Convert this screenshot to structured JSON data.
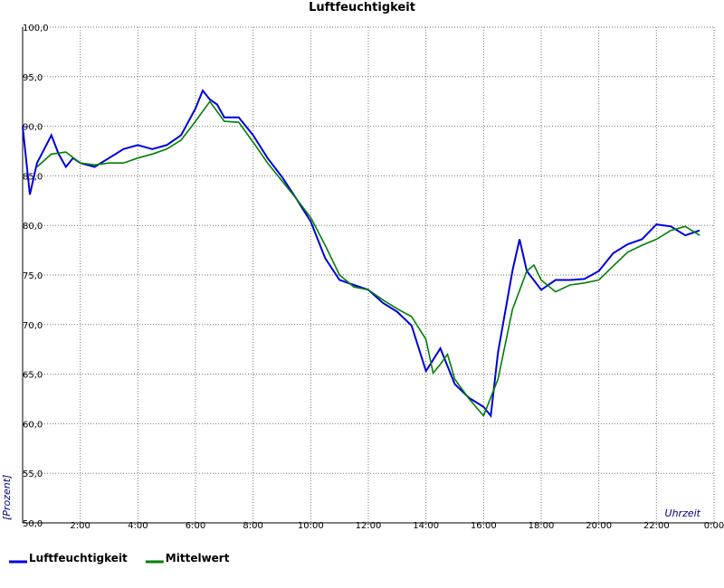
{
  "chart_data": {
    "type": "line",
    "title": "Luftfeuchtigkeit",
    "y_label": "[Prozent]",
    "x_label": "Uhrzeit",
    "xlim": [
      0,
      24
    ],
    "xticks": [
      {
        "value": 2,
        "label": "2:00"
      },
      {
        "value": 4,
        "label": "4:00"
      },
      {
        "value": 6,
        "label": "6:00"
      },
      {
        "value": 8,
        "label": "8:00"
      },
      {
        "value": 10,
        "label": "10:00"
      },
      {
        "value": 12,
        "label": "12:00"
      },
      {
        "value": 14,
        "label": "14:00"
      },
      {
        "value": 16,
        "label": "16:00"
      },
      {
        "value": 18,
        "label": "18:00"
      },
      {
        "value": 20,
        "label": "20:00"
      },
      {
        "value": 22,
        "label": "22:00"
      },
      {
        "value": 24,
        "label": "0:00"
      }
    ],
    "ylim": [
      50,
      100
    ],
    "yticks": [
      {
        "value": 50,
        "label": "50,0"
      },
      {
        "value": 55,
        "label": "55,0"
      },
      {
        "value": 60,
        "label": "60,0"
      },
      {
        "value": 65,
        "label": "65,0"
      },
      {
        "value": 70,
        "label": "70,0"
      },
      {
        "value": 75,
        "label": "75,0"
      },
      {
        "value": 80,
        "label": "80,0"
      },
      {
        "value": 85,
        "label": "85,0"
      },
      {
        "value": 90,
        "label": "90,0"
      },
      {
        "value": 95,
        "label": "95,0"
      },
      {
        "value": 100,
        "label": "100,0"
      }
    ],
    "grid": true,
    "legend": "bottom",
    "series": [
      {
        "name": "Luftfeuchtigkeit",
        "color": "#0000dd",
        "x": [
          0,
          0.25,
          0.5,
          0.75,
          1,
          1.25,
          1.5,
          1.75,
          2,
          2.5,
          3,
          3.5,
          4,
          4.5,
          5,
          5.5,
          6,
          6.25,
          6.5,
          6.75,
          7,
          7.5,
          8,
          8.5,
          9,
          9.5,
          10,
          10.5,
          11,
          11.5,
          12,
          12.5,
          13,
          13.5,
          14,
          14.5,
          15,
          15.5,
          16,
          16.25,
          16.5,
          17,
          17.25,
          17.5,
          18,
          18.5,
          19,
          19.5,
          20,
          20.5,
          21,
          21.5,
          22,
          22.5,
          23,
          23.5
        ],
        "values": [
          90.0,
          83.1,
          86.3,
          87.7,
          89.1,
          87.2,
          85.9,
          86.8,
          86.3,
          85.9,
          86.8,
          87.7,
          88.1,
          87.7,
          88.1,
          89.1,
          91.8,
          93.6,
          92.7,
          92.2,
          90.9,
          90.9,
          89.1,
          86.8,
          84.9,
          82.7,
          80.4,
          76.7,
          74.5,
          74.0,
          73.5,
          72.2,
          71.3,
          69.9,
          65.3,
          67.6,
          64.0,
          62.6,
          61.7,
          60.8,
          67.2,
          75.4,
          78.6,
          75.4,
          73.5,
          74.5,
          74.5,
          74.6,
          75.4,
          77.2,
          78.1,
          78.6,
          80.1,
          79.9,
          79.0,
          79.5
        ]
      },
      {
        "name": "Mittelwert",
        "color": "#008000",
        "x": [
          0.5,
          1,
          1.5,
          2,
          2.5,
          3,
          3.5,
          4,
          4.5,
          5,
          5.5,
          6,
          6.5,
          7,
          7.5,
          8,
          8.5,
          9,
          9.5,
          10,
          10.5,
          11,
          11.5,
          12,
          12.5,
          13,
          13.5,
          14,
          14.25,
          14.5,
          14.75,
          15,
          15.5,
          16,
          16.5,
          17,
          17.5,
          17.75,
          18,
          18.5,
          19,
          19.5,
          20,
          20.5,
          21,
          21.5,
          22,
          22.5,
          23,
          23.5
        ],
        "values": [
          85.9,
          87.2,
          87.4,
          86.3,
          86.1,
          86.3,
          86.3,
          86.8,
          87.2,
          87.7,
          88.6,
          90.5,
          92.5,
          90.5,
          90.4,
          88.4,
          86.3,
          84.5,
          82.7,
          80.8,
          78.0,
          75.0,
          73.8,
          73.5,
          72.5,
          71.6,
          70.8,
          68.5,
          65.1,
          66.0,
          67.0,
          64.5,
          62.5,
          60.8,
          64.5,
          71.5,
          75.4,
          76.0,
          74.5,
          73.3,
          74.0,
          74.2,
          74.5,
          75.9,
          77.3,
          78.0,
          78.6,
          79.5,
          79.9,
          79.0
        ]
      }
    ]
  }
}
